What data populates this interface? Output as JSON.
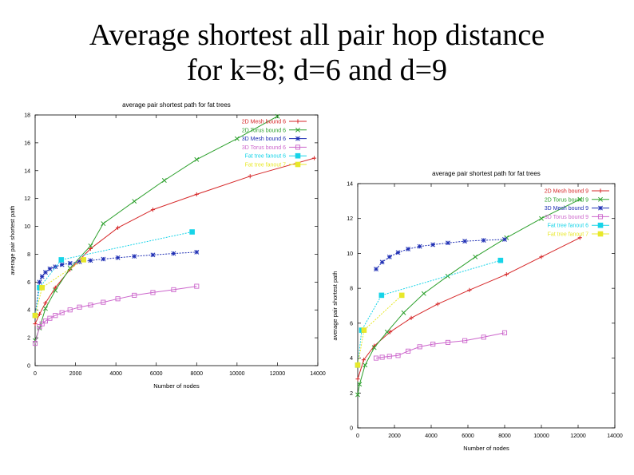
{
  "slide": {
    "title_line1": "Average shortest all pair hop distance",
    "title_line2": "for k=8; d=6 and d=9"
  },
  "chart_data": [
    {
      "type": "line",
      "title": "average pair shortest path for fat trees",
      "xlabel": "Number of nodes",
      "ylabel": "average pair shortest path",
      "xlim": [
        0,
        14000
      ],
      "ylim": [
        0,
        18
      ],
      "xticks": [
        "0",
        "2000",
        "4000",
        "6000",
        "8000",
        "10000",
        "12000",
        "14000"
      ],
      "yticks": [
        "0",
        "2",
        "4",
        "6",
        "8",
        "10",
        "12",
        "14",
        "16",
        "18"
      ],
      "grid": false,
      "legend_position": "top-right",
      "series": [
        {
          "name": "2D Mesh bound 6",
          "color": "#d62728",
          "marker": "plus",
          "x": [
            0,
            216,
            512,
            1000,
            1728,
            2744,
            4096,
            5832,
            8000,
            10648,
            13824
          ],
          "y": [
            3.0,
            3.7,
            4.5,
            5.6,
            6.9,
            8.4,
            9.9,
            11.2,
            12.3,
            13.6,
            14.9
          ]
        },
        {
          "name": "2D Torus bound 6",
          "color": "#2ca02c",
          "marker": "x",
          "x": [
            0,
            216,
            512,
            1000,
            1728,
            2744,
            3375,
            4913,
            6400,
            8000,
            10000,
            12000
          ],
          "y": [
            1.8,
            2.7,
            4.1,
            5.4,
            7.0,
            8.6,
            10.2,
            11.8,
            13.3,
            14.8,
            16.3,
            17.9
          ]
        },
        {
          "name": "3D Mesh bound 6",
          "color": "#1f2fb4",
          "marker": "star",
          "x": [
            0,
            216,
            343,
            512,
            729,
            1000,
            1331,
            1728,
            2197,
            2744,
            3375,
            4096,
            4913,
            5832,
            6859,
            8000
          ],
          "y": [
            3.6,
            6.0,
            6.4,
            6.7,
            6.95,
            7.1,
            7.25,
            7.35,
            7.45,
            7.55,
            7.65,
            7.75,
            7.85,
            7.95,
            8.05,
            8.15
          ]
        },
        {
          "name": "3D Torus bound 6",
          "color": "#cc66cc",
          "marker": "square",
          "x": [
            0,
            216,
            343,
            512,
            729,
            1000,
            1331,
            1728,
            2197,
            2744,
            3375,
            4096,
            4913,
            5832,
            6859,
            8000
          ],
          "y": [
            1.6,
            2.8,
            3.0,
            3.2,
            3.4,
            3.6,
            3.8,
            4.0,
            4.2,
            4.35,
            4.55,
            4.8,
            5.05,
            5.25,
            5.45,
            5.7
          ]
        },
        {
          "name": "Fat tree fanout 6",
          "color": "#17d4e8",
          "marker": "filledsquare",
          "x": [
            0,
            216,
            1296,
            7776
          ],
          "y": [
            3.6,
            5.6,
            7.6,
            9.6
          ]
        },
        {
          "name": "Fat tree fanout 7",
          "color": "#e8e82a",
          "marker": "filledsquare",
          "x": [
            0,
            343,
            2401
          ],
          "y": [
            3.6,
            5.6,
            7.6
          ]
        }
      ]
    },
    {
      "type": "line",
      "title": "average pair shortest path for fat trees",
      "xlabel": "Number of nodes",
      "ylabel": "average pair shortest path",
      "xlim": [
        0,
        14000
      ],
      "ylim": [
        0,
        14
      ],
      "xticks": [
        "0",
        "2000",
        "4000",
        "6000",
        "8000",
        "10000",
        "12000",
        "14000"
      ],
      "yticks": [
        "0",
        "2",
        "4",
        "6",
        "8",
        "10",
        "12",
        "14"
      ],
      "grid": false,
      "legend_position": "top-right",
      "series": [
        {
          "name": "2D Mesh bound 9",
          "color": "#d62728",
          "marker": "plus",
          "x": [
            0,
            324,
            900,
            1764,
            2916,
            4356,
            6084,
            8100,
            10000,
            12100
          ],
          "y": [
            2.8,
            3.9,
            4.7,
            5.5,
            6.3,
            7.1,
            7.9,
            8.8,
            9.8,
            10.9
          ]
        },
        {
          "name": "2D Torus bound 9",
          "color": "#2ca02c",
          "marker": "x",
          "x": [
            0,
            100,
            400,
            900,
            1600,
            2500,
            3600,
            4900,
            6400,
            8100,
            10000,
            12100
          ],
          "y": [
            1.9,
            2.5,
            3.6,
            4.6,
            5.5,
            6.6,
            7.7,
            8.7,
            9.8,
            10.9,
            12.0,
            13.1
          ]
        },
        {
          "name": "3D Mesh bound 9",
          "color": "#1f2fb4",
          "marker": "star",
          "x": [
            1000,
            1331,
            1728,
            2197,
            2744,
            3375,
            4096,
            4913,
            5832,
            6859,
            8000
          ],
          "y": [
            9.1,
            9.5,
            9.8,
            10.05,
            10.25,
            10.4,
            10.5,
            10.6,
            10.7,
            10.75,
            10.8
          ]
        },
        {
          "name": "3D Torus bound 9",
          "color": "#cc66cc",
          "marker": "square",
          "x": [
            1000,
            1331,
            1728,
            2197,
            2744,
            3375,
            4096,
            4913,
            5832,
            6859,
            8000
          ],
          "y": [
            4.0,
            4.05,
            4.1,
            4.15,
            4.4,
            4.65,
            4.8,
            4.9,
            5.0,
            5.2,
            5.45
          ]
        },
        {
          "name": "Fat tree fanout 6",
          "color": "#17d4e8",
          "marker": "filledsquare",
          "x": [
            0,
            216,
            1296,
            7776
          ],
          "y": [
            3.6,
            5.6,
            7.6,
            9.6
          ]
        },
        {
          "name": "Fat tree fanout 7",
          "color": "#e8e82a",
          "marker": "filledsquare",
          "x": [
            0,
            343,
            2401
          ],
          "y": [
            3.6,
            5.6,
            7.6
          ]
        }
      ]
    }
  ]
}
